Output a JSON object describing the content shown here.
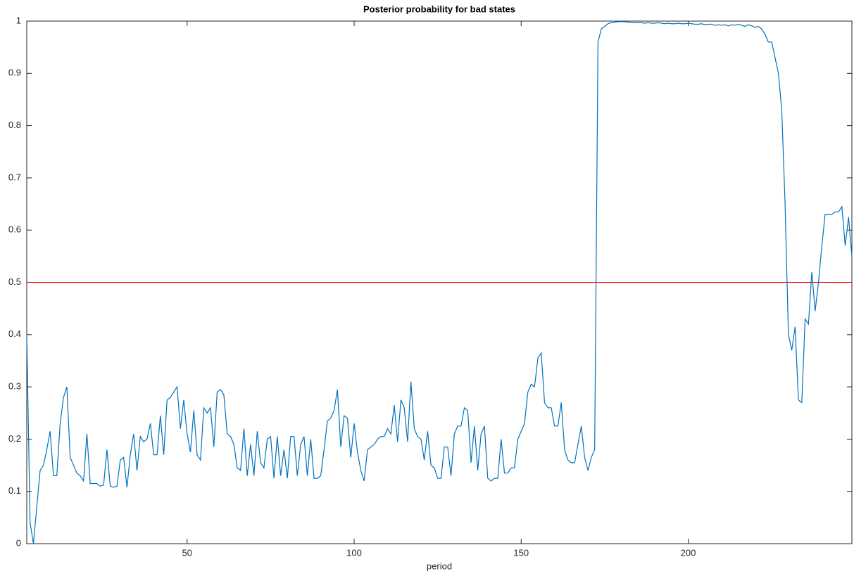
{
  "chart_data": {
    "type": "line",
    "title": "Posterior probability for bad states",
    "x_label": "period",
    "xlim": [
      2,
      249
    ],
    "xticks": [
      50,
      100,
      150,
      200
    ],
    "ylim": [
      0,
      1
    ],
    "yticks": [
      0,
      0.1,
      0.2,
      0.3,
      0.4,
      0.5,
      0.6,
      0.7,
      0.8,
      0.9,
      1
    ],
    "hline": {
      "value": 0.5,
      "color": "#ff0000"
    },
    "x": [
      2,
      3,
      4,
      5,
      6,
      7,
      8,
      9,
      10,
      11,
      12,
      13,
      14,
      15,
      16,
      17,
      18,
      19,
      20,
      21,
      22,
      23,
      24,
      25,
      26,
      27,
      28,
      29,
      30,
      31,
      32,
      33,
      34,
      35,
      36,
      37,
      38,
      39,
      40,
      41,
      42,
      43,
      44,
      45,
      46,
      47,
      48,
      49,
      50,
      51,
      52,
      53,
      54,
      55,
      56,
      57,
      58,
      59,
      60,
      61,
      62,
      63,
      64,
      65,
      66,
      67,
      68,
      69,
      70,
      71,
      72,
      73,
      74,
      75,
      76,
      77,
      78,
      79,
      80,
      81,
      82,
      83,
      84,
      85,
      86,
      87,
      88,
      89,
      90,
      91,
      92,
      93,
      94,
      95,
      96,
      97,
      98,
      99,
      100,
      101,
      102,
      103,
      104,
      105,
      106,
      107,
      108,
      109,
      110,
      111,
      112,
      113,
      114,
      115,
      116,
      117,
      118,
      119,
      120,
      121,
      122,
      123,
      124,
      125,
      126,
      127,
      128,
      129,
      130,
      131,
      132,
      133,
      134,
      135,
      136,
      137,
      138,
      139,
      140,
      141,
      142,
      143,
      144,
      145,
      146,
      147,
      148,
      149,
      150,
      151,
      152,
      153,
      154,
      155,
      156,
      157,
      158,
      159,
      160,
      161,
      162,
      163,
      164,
      165,
      166,
      167,
      168,
      169,
      170,
      171,
      172,
      173,
      174,
      175,
      176,
      177,
      178,
      179,
      180,
      181,
      182,
      183,
      184,
      185,
      186,
      187,
      188,
      189,
      190,
      191,
      192,
      193,
      194,
      195,
      196,
      197,
      198,
      199,
      200,
      201,
      202,
      203,
      204,
      205,
      206,
      207,
      208,
      209,
      210,
      211,
      212,
      213,
      214,
      215,
      216,
      217,
      218,
      219,
      220,
      221,
      222,
      223,
      224,
      225,
      226,
      227,
      228,
      229,
      230,
      231,
      232,
      233,
      234,
      235,
      236,
      237,
      238,
      239,
      240,
      241,
      242,
      243,
      244,
      245,
      246,
      247,
      248,
      249
    ],
    "series": [
      {
        "color": "#0072bd",
        "values": [
          0.4,
          0.04,
          0.0,
          0.07,
          0.14,
          0.15,
          0.18,
          0.215,
          0.13,
          0.13,
          0.23,
          0.28,
          0.3,
          0.165,
          0.15,
          0.135,
          0.13,
          0.12,
          0.21,
          0.115,
          0.115,
          0.115,
          0.11,
          0.112,
          0.18,
          0.11,
          0.108,
          0.11,
          0.16,
          0.165,
          0.108,
          0.17,
          0.21,
          0.14,
          0.205,
          0.195,
          0.2,
          0.23,
          0.17,
          0.17,
          0.245,
          0.17,
          0.275,
          0.28,
          0.29,
          0.3,
          0.22,
          0.275,
          0.21,
          0.175,
          0.255,
          0.17,
          0.16,
          0.26,
          0.25,
          0.26,
          0.185,
          0.29,
          0.295,
          0.285,
          0.21,
          0.205,
          0.19,
          0.145,
          0.14,
          0.22,
          0.13,
          0.19,
          0.13,
          0.215,
          0.155,
          0.145,
          0.2,
          0.205,
          0.125,
          0.205,
          0.13,
          0.18,
          0.125,
          0.205,
          0.205,
          0.13,
          0.19,
          0.205,
          0.13,
          0.2,
          0.125,
          0.125,
          0.13,
          0.18,
          0.235,
          0.24,
          0.255,
          0.295,
          0.185,
          0.245,
          0.24,
          0.165,
          0.23,
          0.175,
          0.14,
          0.12,
          0.18,
          0.185,
          0.19,
          0.2,
          0.205,
          0.205,
          0.22,
          0.21,
          0.265,
          0.195,
          0.275,
          0.26,
          0.195,
          0.31,
          0.22,
          0.205,
          0.2,
          0.16,
          0.215,
          0.15,
          0.145,
          0.125,
          0.125,
          0.185,
          0.185,
          0.13,
          0.21,
          0.225,
          0.225,
          0.26,
          0.255,
          0.155,
          0.225,
          0.14,
          0.21,
          0.225,
          0.125,
          0.12,
          0.125,
          0.125,
          0.2,
          0.135,
          0.135,
          0.145,
          0.145,
          0.2,
          0.215,
          0.23,
          0.29,
          0.305,
          0.3,
          0.355,
          0.365,
          0.27,
          0.26,
          0.26,
          0.225,
          0.225,
          0.27,
          0.18,
          0.16,
          0.155,
          0.155,
          0.19,
          0.225,
          0.165,
          0.14,
          0.165,
          0.18,
          0.96,
          0.985,
          0.99,
          0.995,
          0.997,
          0.998,
          0.999,
          0.999,
          0.999,
          0.998,
          0.998,
          0.997,
          0.997,
          0.997,
          0.996,
          0.997,
          0.996,
          0.996,
          0.997,
          0.996,
          0.995,
          0.996,
          0.995,
          0.995,
          0.996,
          0.995,
          0.995,
          0.996,
          0.995,
          0.994,
          0.994,
          0.995,
          0.993,
          0.994,
          0.994,
          0.992,
          0.993,
          0.992,
          0.993,
          0.991,
          0.993,
          0.992,
          0.994,
          0.992,
          0.99,
          0.993,
          0.991,
          0.988,
          0.99,
          0.985,
          0.975,
          0.96,
          0.96,
          0.93,
          0.9,
          0.83,
          0.65,
          0.4,
          0.37,
          0.415,
          0.275,
          0.27,
          0.43,
          0.42,
          0.52,
          0.445,
          0.5,
          0.57,
          0.63,
          0.63,
          0.63,
          0.635,
          0.635,
          0.645,
          0.57,
          0.625,
          0.55
        ]
      }
    ]
  }
}
